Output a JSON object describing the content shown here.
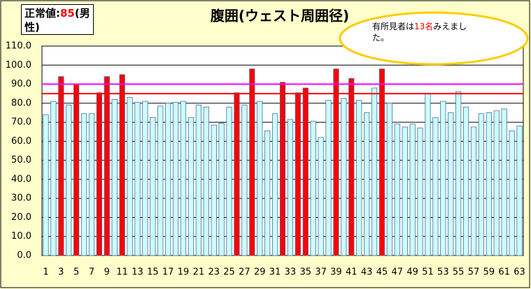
{
  "chart_data": {
    "type": "bar",
    "title": "腹囲(ウェスト周囲径)",
    "categories": [
      "1",
      null,
      "3",
      null,
      "5",
      null,
      "7",
      null,
      "9",
      null,
      "11",
      null,
      "13",
      null,
      "15",
      null,
      "17",
      null,
      "19",
      null,
      "21",
      null,
      "23",
      null,
      "25",
      null,
      "27",
      null,
      "29",
      null,
      "31",
      null,
      "33",
      null,
      "35",
      null,
      "37",
      null,
      "39",
      null,
      "41",
      null,
      "43",
      null,
      "45",
      null,
      "47",
      null,
      "49",
      null,
      "51",
      null,
      "53",
      null,
      "55",
      null,
      "57",
      null,
      "59",
      null,
      "61",
      null,
      "63"
    ],
    "values": [
      74,
      81,
      94,
      79,
      90,
      74.5,
      74.5,
      85.5,
      94,
      82,
      95,
      83,
      80.5,
      81,
      72.5,
      78.5,
      80,
      80.5,
      81,
      72.5,
      79,
      78,
      68.5,
      69.5,
      78,
      85.5,
      79,
      98,
      81,
      65.5,
      74.5,
      91,
      71.5,
      85.5,
      88,
      70.5,
      62,
      81.5,
      98,
      82.5,
      93,
      81.5,
      75,
      88,
      98,
      80,
      69,
      67.5,
      69,
      67,
      85,
      72.5,
      81,
      75,
      86,
      78,
      67.5,
      74.5,
      75,
      76,
      77,
      65.5,
      68
    ],
    "colors": [
      "#ccffff",
      "#ccffff",
      "#ff0000",
      "#ccffff",
      "#ff0000",
      "#ccffff",
      "#ccffff",
      "#ff0000",
      "#ff0000",
      "#ccffff",
      "#ff0000",
      "#ccffff",
      "#ccffff",
      "#ccffff",
      "#ccffff",
      "#ccffff",
      "#ccffff",
      "#ccffff",
      "#ccffff",
      "#ccffff",
      "#ccffff",
      "#ccffff",
      "#ccffff",
      "#ccffff",
      "#ccffff",
      "#ff0000",
      "#ccffff",
      "#ff0000",
      "#ccffff",
      "#ccffff",
      "#ccffff",
      "#ff0000",
      "#ccffff",
      "#ff0000",
      "#ff0000",
      "#ccffff",
      "#ccffff",
      "#ccffff",
      "#ff0000",
      "#ccffff",
      "#ff0000",
      "#ccffff",
      "#ccffff",
      "#ccffff",
      "#ff0000",
      "#ccffff",
      "#ccffff",
      "#ccffff",
      "#ccffff",
      "#ccffff",
      "#ccffff",
      "#ccffff",
      "#ccffff",
      "#ccffff",
      "#ccffff",
      "#ccffff",
      "#ccffff",
      "#ccffff",
      "#ccffff",
      "#ccffff",
      "#ccffff",
      "#ccffff",
      "#ccffff"
    ],
    "ylim": [
      0,
      110
    ],
    "yticks": [
      {
        "value": 0,
        "label": "0.0"
      },
      {
        "value": 10,
        "label": "10.0"
      },
      {
        "value": 20,
        "label": "20.0"
      },
      {
        "value": 30,
        "label": "30.0"
      },
      {
        "value": 40,
        "label": "40.0"
      },
      {
        "value": 50,
        "label": "50.0"
      },
      {
        "value": 60,
        "label": "60.0"
      },
      {
        "value": 70,
        "label": "70.0"
      },
      {
        "value": 80,
        "label": "80.0"
      },
      {
        "value": 90,
        "label": "90.0"
      },
      {
        "value": 100,
        "label": "100.0"
      },
      {
        "value": 110,
        "label": "110.0"
      }
    ],
    "grid": true,
    "reference_lines": [
      {
        "value": 85,
        "color": "#ff0000"
      },
      {
        "value": 90,
        "color": "#ff00ff"
      }
    ],
    "normal_box": {
      "prefix": "正常値:",
      "value": "85",
      "suffix": "(男性)"
    },
    "callout": {
      "prefix": "有所見者は",
      "value": "13名",
      "suffix": "みえました。"
    }
  }
}
